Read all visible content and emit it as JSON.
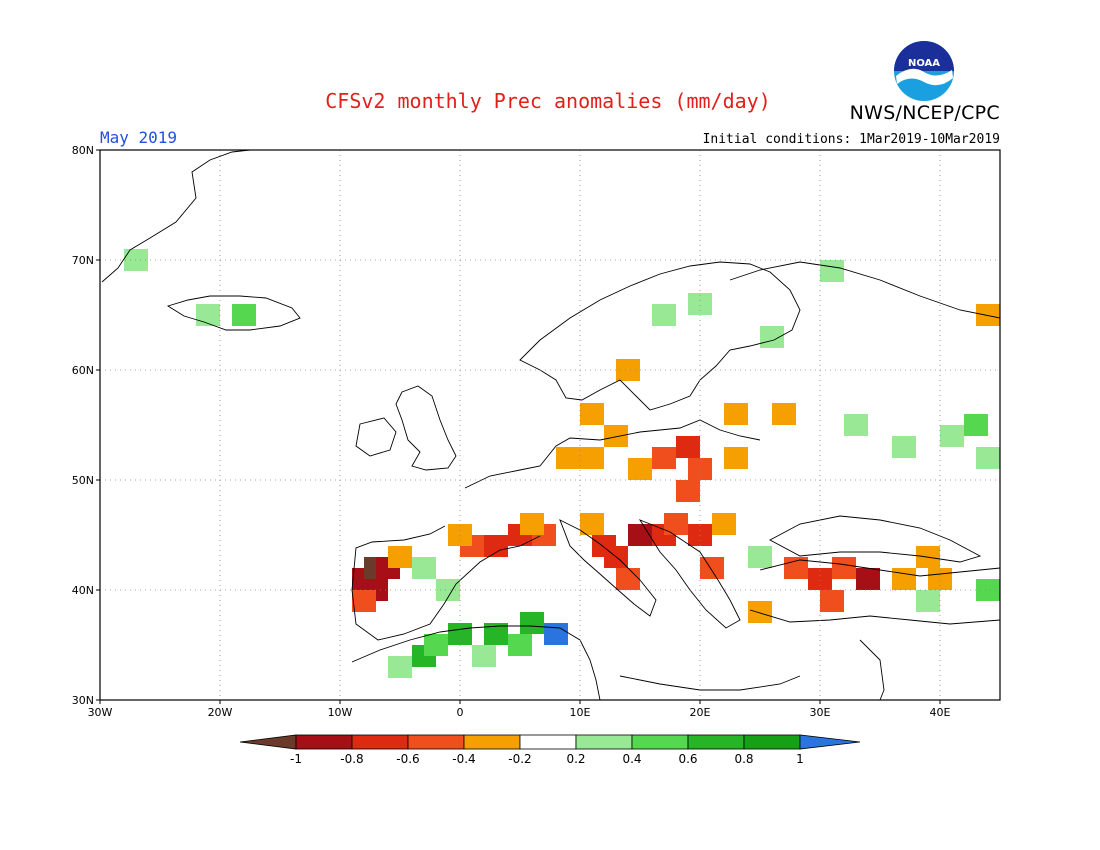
{
  "header": {
    "title": "CFSv2 monthly Prec anomalies (mm/day)",
    "agency": "NWS/NCEP/CPC",
    "month": "May 2019",
    "initial_conditions": "Initial conditions: 1Mar2019-10Mar2019",
    "logo_text": "NOAA"
  },
  "map": {
    "lon_range": [
      -30,
      45
    ],
    "lat_range": [
      30,
      80
    ],
    "lon_ticks": [
      "30W",
      "20W",
      "10W",
      "0",
      "10E",
      "20E",
      "30E",
      "40E"
    ],
    "lat_ticks": [
      "30N",
      "40N",
      "50N",
      "60N",
      "70N",
      "80N"
    ]
  },
  "colorbar": {
    "levels": [
      "-1",
      "-0.8",
      "-0.6",
      "-0.4",
      "-0.2",
      "0.2",
      "0.4",
      "0.6",
      "0.8",
      "1"
    ],
    "colors": [
      "#6b3a2a",
      "#a50f15",
      "#dd2a10",
      "#f04e1c",
      "#f5a000",
      "#ffffff",
      "#98e896",
      "#55d850",
      "#26b526",
      "#16a016",
      "#2a74e0"
    ]
  },
  "anomaly_cells": [
    {
      "lon": -9,
      "lat": 40,
      "color": "#a50f15"
    },
    {
      "lon": -8,
      "lat": 41,
      "color": "#6b3a2a"
    },
    {
      "lon": -8,
      "lat": 39,
      "color": "#a50f15"
    },
    {
      "lon": -7,
      "lat": 41,
      "color": "#a50f15"
    },
    {
      "lon": -9,
      "lat": 38,
      "color": "#f04e1c"
    },
    {
      "lon": -6,
      "lat": 42,
      "color": "#f5a000"
    },
    {
      "lon": 0,
      "lat": 43,
      "color": "#f04e1c"
    },
    {
      "lon": 2,
      "lat": 43,
      "color": "#dd2a10"
    },
    {
      "lon": 4,
      "lat": 44,
      "color": "#dd2a10"
    },
    {
      "lon": 6,
      "lat": 44,
      "color": "#f04e1c"
    },
    {
      "lon": -1,
      "lat": 44,
      "color": "#f5a000"
    },
    {
      "lon": 5,
      "lat": 45,
      "color": "#f5a000"
    },
    {
      "lon": 11,
      "lat": 43,
      "color": "#dd2a10"
    },
    {
      "lon": 12,
      "lat": 42,
      "color": "#dd2a10"
    },
    {
      "lon": 14,
      "lat": 44,
      "color": "#a50f15"
    },
    {
      "lon": 16,
      "lat": 44,
      "color": "#dd2a10"
    },
    {
      "lon": 17,
      "lat": 45,
      "color": "#f04e1c"
    },
    {
      "lon": 19,
      "lat": 44,
      "color": "#dd2a10"
    },
    {
      "lon": 21,
      "lat": 45,
      "color": "#f5a000"
    },
    {
      "lon": 10,
      "lat": 45,
      "color": "#f5a000"
    },
    {
      "lon": 20,
      "lat": 41,
      "color": "#f04e1c"
    },
    {
      "lon": 13,
      "lat": 40,
      "color": "#f04e1c"
    },
    {
      "lon": 8,
      "lat": 51,
      "color": "#f5a000"
    },
    {
      "lon": 10,
      "lat": 51,
      "color": "#f5a000"
    },
    {
      "lon": 14,
      "lat": 50,
      "color": "#f5a000"
    },
    {
      "lon": 16,
      "lat": 51,
      "color": "#f04e1c"
    },
    {
      "lon": 18,
      "lat": 52,
      "color": "#dd2a10"
    },
    {
      "lon": 19,
      "lat": 50,
      "color": "#f04e1c"
    },
    {
      "lon": 22,
      "lat": 51,
      "color": "#f5a000"
    },
    {
      "lon": 12,
      "lat": 53,
      "color": "#f5a000"
    },
    {
      "lon": 10,
      "lat": 55,
      "color": "#f5a000"
    },
    {
      "lon": 22,
      "lat": 55,
      "color": "#f5a000"
    },
    {
      "lon": 26,
      "lat": 55,
      "color": "#f5a000"
    },
    {
      "lon": 13,
      "lat": 59,
      "color": "#f5a000"
    },
    {
      "lon": 18,
      "lat": 48,
      "color": "#f04e1c"
    },
    {
      "lon": 29,
      "lat": 40,
      "color": "#dd2a10"
    },
    {
      "lon": 31,
      "lat": 41,
      "color": "#f04e1c"
    },
    {
      "lon": 33,
      "lat": 40,
      "color": "#a50f15"
    },
    {
      "lon": 30,
      "lat": 38,
      "color": "#f04e1c"
    },
    {
      "lon": 27,
      "lat": 41,
      "color": "#f04e1c"
    },
    {
      "lon": 36,
      "lat": 40,
      "color": "#f5a000"
    },
    {
      "lon": 39,
      "lat": 40,
      "color": "#f5a000"
    },
    {
      "lon": 24,
      "lat": 37,
      "color": "#f5a000"
    },
    {
      "lon": 38,
      "lat": 42,
      "color": "#f5a000"
    },
    {
      "lon": 43,
      "lat": 64,
      "color": "#f5a000"
    },
    {
      "lon": -1,
      "lat": 35,
      "color": "#26b526"
    },
    {
      "lon": 2,
      "lat": 35,
      "color": "#26b526"
    },
    {
      "lon": 5,
      "lat": 36,
      "color": "#26b526"
    },
    {
      "lon": 7,
      "lat": 35,
      "color": "#2a74e0"
    },
    {
      "lon": -4,
      "lat": 33,
      "color": "#26b526"
    },
    {
      "lon": -3,
      "lat": 34,
      "color": "#55d850"
    },
    {
      "lon": 1,
      "lat": 33,
      "color": "#98e896"
    },
    {
      "lon": 4,
      "lat": 34,
      "color": "#55d850"
    },
    {
      "lon": -6,
      "lat": 32,
      "color": "#98e896"
    },
    {
      "lon": -22,
      "lat": 64,
      "color": "#98e896"
    },
    {
      "lon": -19,
      "lat": 64,
      "color": "#55d850"
    },
    {
      "lon": -28,
      "lat": 69,
      "color": "#98e896"
    },
    {
      "lon": 16,
      "lat": 64,
      "color": "#98e896"
    },
    {
      "lon": 19,
      "lat": 65,
      "color": "#98e896"
    },
    {
      "lon": 25,
      "lat": 62,
      "color": "#98e896"
    },
    {
      "lon": 30,
      "lat": 68,
      "color": "#98e896"
    },
    {
      "lon": 32,
      "lat": 54,
      "color": "#98e896"
    },
    {
      "lon": 36,
      "lat": 52,
      "color": "#98e896"
    },
    {
      "lon": 40,
      "lat": 53,
      "color": "#98e896"
    },
    {
      "lon": 43,
      "lat": 51,
      "color": "#98e896"
    },
    {
      "lon": 42,
      "lat": 54,
      "color": "#55d850"
    },
    {
      "lon": 38,
      "lat": 38,
      "color": "#98e896"
    },
    {
      "lon": 43,
      "lat": 39,
      "color": "#55d850"
    },
    {
      "lon": -2,
      "lat": 39,
      "color": "#98e896"
    },
    {
      "lon": 24,
      "lat": 42,
      "color": "#98e896"
    },
    {
      "lon": -4,
      "lat": 41,
      "color": "#98e896"
    }
  ]
}
